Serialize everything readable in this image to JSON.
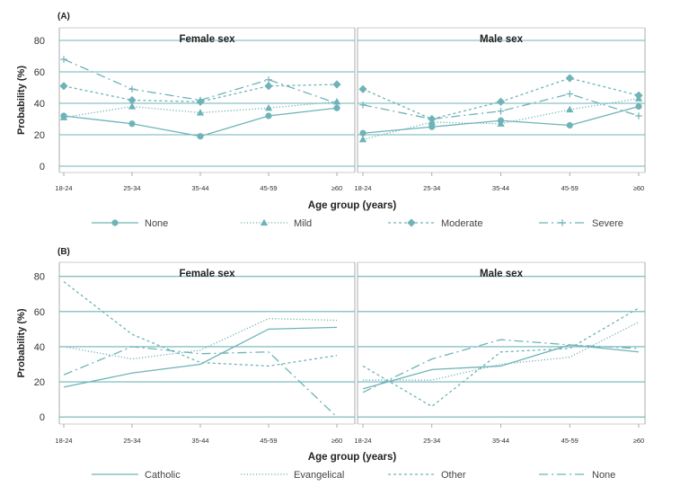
{
  "colors": {
    "series": "#6fb3b8",
    "grid": "#6fb3b8",
    "axis": "#999999",
    "text": "#222222"
  },
  "chart_data": [
    {
      "type": "line",
      "panel_label": "(A)",
      "ylabel": "Probability (%)",
      "xlabel": "Age group (years)",
      "ylim": [
        -4,
        88
      ],
      "yticks": [
        0,
        20,
        40,
        60,
        80
      ],
      "categories": [
        "18-24",
        "25-34",
        "35-44",
        "45-59",
        "≥60"
      ],
      "panels": [
        {
          "title": "Female sex",
          "series": [
            {
              "name": "None",
              "values": [
                32,
                27,
                19,
                32,
                37
              ]
            },
            {
              "name": "Mild",
              "values": [
                31,
                38,
                34,
                37,
                41
              ]
            },
            {
              "name": "Moderate",
              "values": [
                51,
                42,
                41,
                51,
                52
              ]
            },
            {
              "name": "Severe",
              "values": [
                68,
                49,
                42,
                55,
                40
              ]
            }
          ]
        },
        {
          "title": "Male sex",
          "series": [
            {
              "name": "None",
              "values": [
                21,
                25,
                29,
                26,
                38
              ]
            },
            {
              "name": "Mild",
              "values": [
                17,
                28,
                27,
                36,
                43
              ]
            },
            {
              "name": "Moderate",
              "values": [
                49,
                30,
                41,
                56,
                45
              ]
            },
            {
              "name": "Severe",
              "values": [
                39,
                30,
                35,
                46,
                32
              ]
            }
          ]
        }
      ],
      "legend": [
        "None",
        "Mild",
        "Moderate",
        "Severe"
      ]
    },
    {
      "type": "line",
      "panel_label": "(B)",
      "ylabel": "Probability (%)",
      "xlabel": "Age group (years)",
      "ylim": [
        -4,
        88
      ],
      "yticks": [
        0,
        20,
        40,
        60,
        80
      ],
      "categories": [
        "18-24",
        "25-34",
        "35-44",
        "45-59",
        "≥60"
      ],
      "panels": [
        {
          "title": "Female sex",
          "series": [
            {
              "name": "Catholic",
              "values": [
                17,
                25,
                30,
                50,
                51
              ]
            },
            {
              "name": "Evangelical",
              "values": [
                40,
                33,
                38,
                56,
                55
              ]
            },
            {
              "name": "Other",
              "values": [
                77,
                47,
                31,
                29,
                35
              ]
            },
            {
              "name": "None",
              "values": [
                24,
                40,
                36,
                37,
                0
              ]
            }
          ]
        },
        {
          "title": "Male sex",
          "series": [
            {
              "name": "Catholic",
              "values": [
                16,
                27,
                29,
                41,
                37
              ]
            },
            {
              "name": "Evangelical",
              "values": [
                21,
                21,
                30,
                34,
                54
              ]
            },
            {
              "name": "Other",
              "values": [
                29,
                6,
                37,
                39,
                62
              ]
            },
            {
              "name": "None",
              "values": [
                14,
                33,
                44,
                41,
                39
              ]
            }
          ]
        }
      ],
      "legend": [
        "Catholic",
        "Evangelical",
        "Other",
        "None"
      ]
    }
  ]
}
